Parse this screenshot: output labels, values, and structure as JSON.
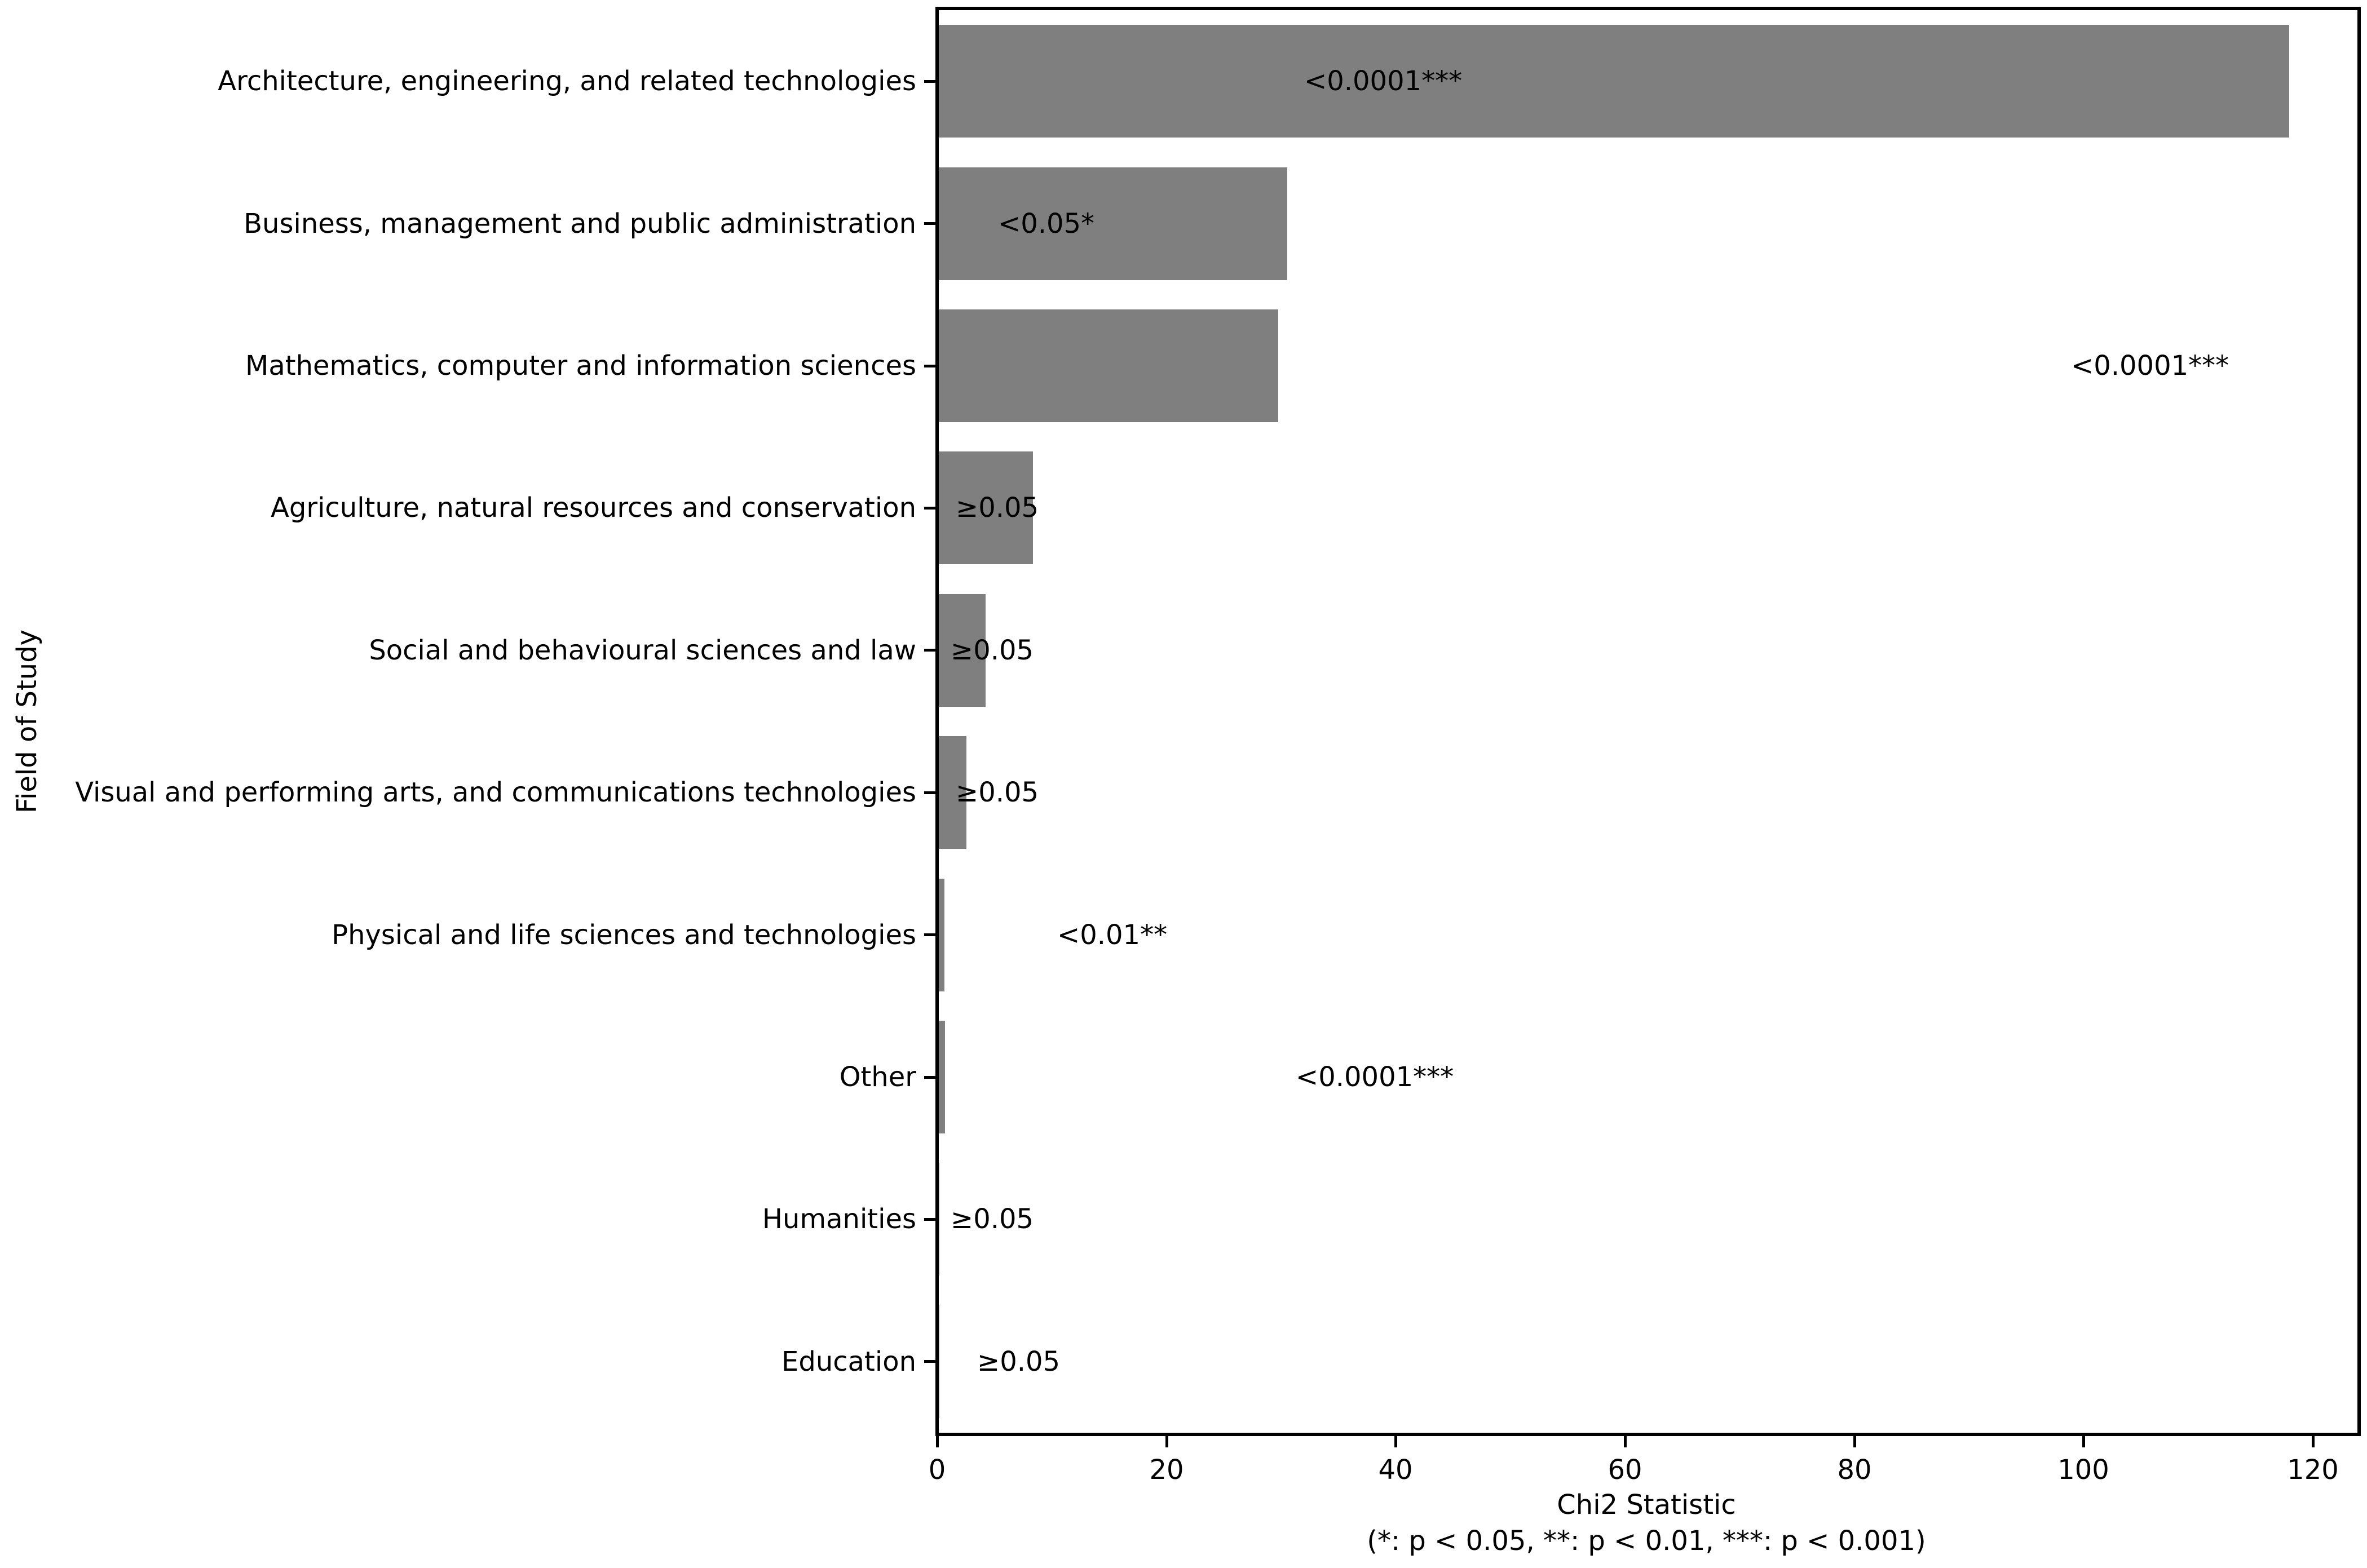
{
  "chart_data": {
    "type": "bar",
    "orientation": "horizontal",
    "title": "",
    "xlabel": "Chi2 Statistic",
    "xlabel_note": "(*: p < 0.05, **: p < 0.01, ***: p < 0.001)",
    "ylabel": "Field of Study",
    "xlim": [
      0,
      123.75
    ],
    "xticks": [
      0,
      20,
      40,
      60,
      80,
      100,
      120
    ],
    "grid": false,
    "legend": null,
    "bar_color": "#7f7f7f",
    "text_color": "#000000",
    "categories": [
      "Architecture, engineering, and related technologies",
      "Business, management and public administration",
      "Mathematics, computer and information sciences",
      "Agriculture, natural resources and conservation",
      "Social and behavioural sciences and law",
      "Visual and performing arts, and communications technologies",
      "Physical and life sciences and technologies",
      "Other",
      "Humanities",
      "Education"
    ],
    "values": [
      117.8,
      30.4,
      29.6,
      8.2,
      4.1,
      2.4,
      0.5,
      0.55,
      0.05,
      0.05
    ],
    "p_labels": [
      "<0.0001***",
      "<0.05*",
      "<0.0001***",
      "≥0.05",
      "≥0.05",
      "≥0.05",
      "<0.01**",
      "<0.0001***",
      "≥0.05",
      "≥0.05"
    ],
    "p_label_x": [
      32.0,
      5.3,
      98.9,
      1.6,
      1.2,
      1.6,
      10.5,
      31.3,
      1.2,
      3.5
    ]
  }
}
